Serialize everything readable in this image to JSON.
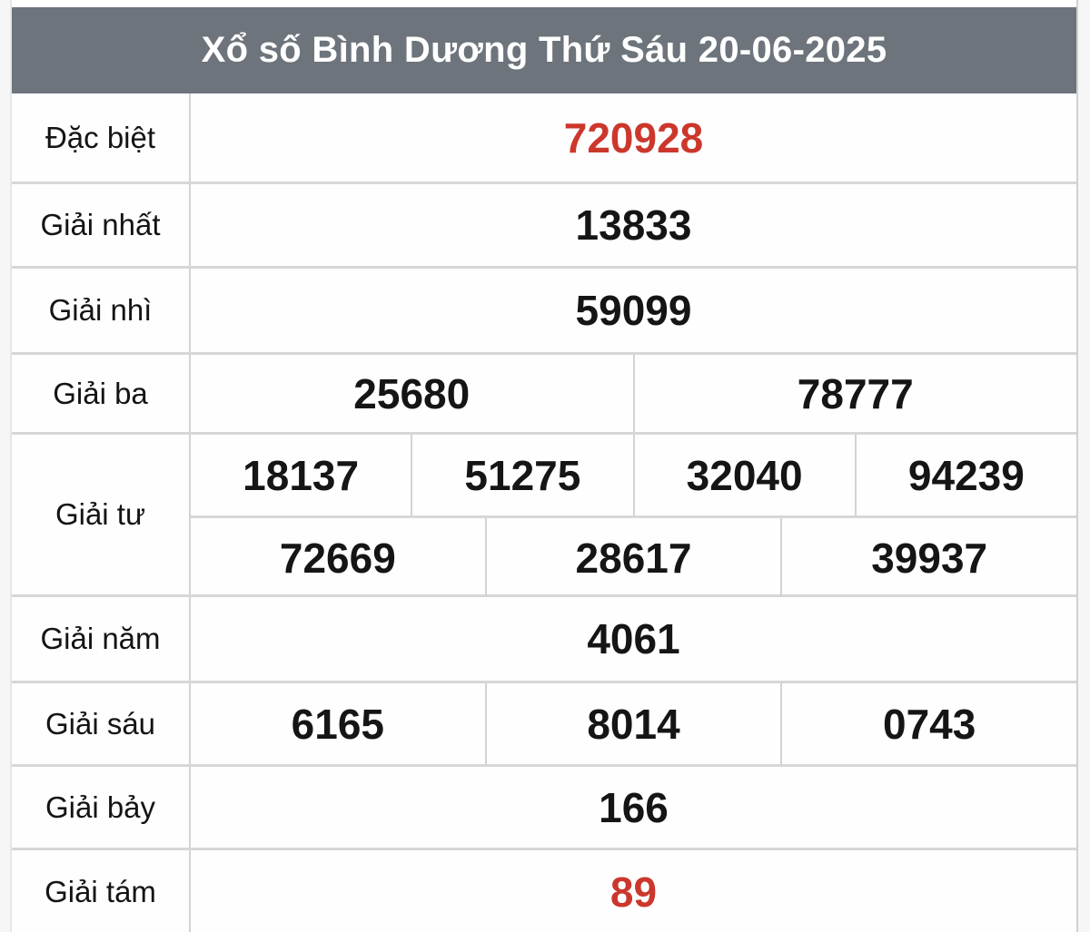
{
  "header": {
    "title": "Xổ số Bình Dương Thứ Sáu 20-06-2025"
  },
  "colors": {
    "header_bg": "#6d747c",
    "header_text": "#ffffff",
    "highlight_red": "#cc372c",
    "number_black": "#151515",
    "border_gray": "#d4d5d7",
    "page_bg": "#f6f6f6"
  },
  "table": {
    "rows": [
      {
        "label": "Đặc biệt",
        "highlight": true,
        "cells": [
          "720928"
        ]
      },
      {
        "label": "Giải nhất",
        "highlight": false,
        "cells": [
          "13833"
        ]
      },
      {
        "label": "Giải nhì",
        "highlight": false,
        "cells": [
          "59099"
        ]
      },
      {
        "label": "Giải ba",
        "highlight": false,
        "cells": [
          "25680",
          "78777"
        ]
      },
      {
        "label": "Giải tư",
        "highlight": false,
        "sub_rows": [
          [
            "18137",
            "51275",
            "32040",
            "94239"
          ],
          [
            "72669",
            "28617",
            "39937"
          ]
        ]
      },
      {
        "label": "Giải năm",
        "highlight": false,
        "cells": [
          "4061"
        ]
      },
      {
        "label": "Giải sáu",
        "highlight": false,
        "cells": [
          "6165",
          "8014",
          "0743"
        ]
      },
      {
        "label": "Giải bảy",
        "highlight": false,
        "cells": [
          "166"
        ]
      },
      {
        "label": "Giải tám",
        "highlight": true,
        "cells": [
          "89"
        ]
      }
    ]
  }
}
